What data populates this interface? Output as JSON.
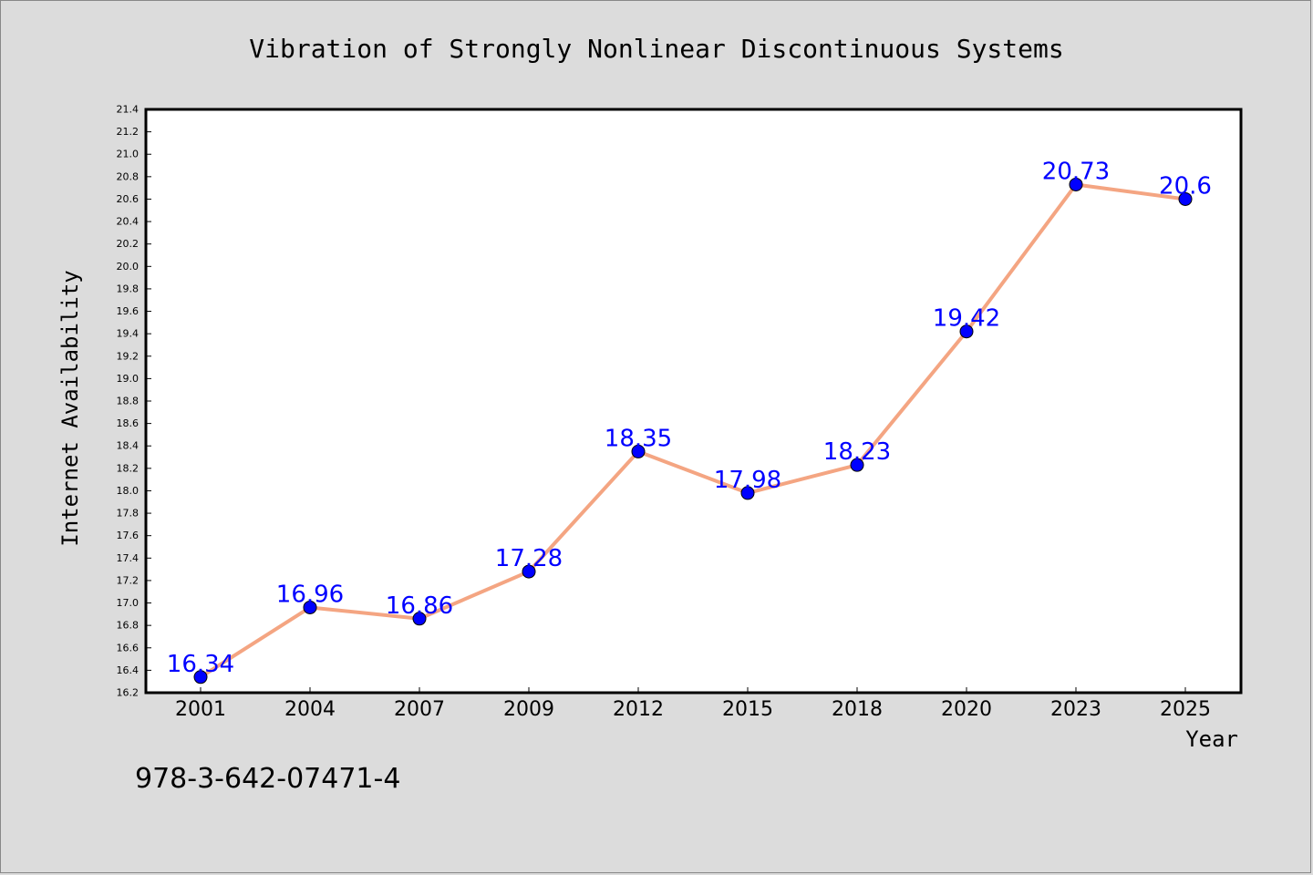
{
  "chart_data": {
    "type": "line",
    "title": "Vibration of Strongly Nonlinear Discontinuous Systems",
    "xlabel": "Year",
    "ylabel": "Internet Availability",
    "categories": [
      "2001",
      "2004",
      "2007",
      "2009",
      "2012",
      "2015",
      "2018",
      "2020",
      "2023",
      "2025"
    ],
    "series": [
      {
        "values": [
          16.34,
          16.96,
          16.86,
          17.28,
          18.35,
          17.98,
          18.23,
          19.42,
          20.73,
          20.6
        ],
        "line_color": "#f4a582",
        "marker_color": "#0000ff"
      }
    ],
    "data_labels": [
      "16.34",
      "16.96",
      "16.86",
      "17.28",
      "18.35",
      "17.98",
      "18.23",
      "19.42",
      "20.73",
      "20.6"
    ],
    "ylim": [
      16.2,
      21.4
    ],
    "yticks": [
      "16.2",
      "16.4",
      "16.6",
      "16.8",
      "17.0",
      "17.2",
      "17.4",
      "17.6",
      "17.8",
      "18.0",
      "18.2",
      "18.4",
      "18.6",
      "18.8",
      "19.0",
      "19.2",
      "19.4",
      "19.6",
      "19.8",
      "20.0",
      "20.2",
      "20.4",
      "20.6",
      "20.8",
      "21.0",
      "21.2",
      "21.4"
    ],
    "grid": false,
    "legend": "none",
    "label_color": "#0000ff"
  },
  "footer": {
    "isbn": "978-3-642-07471-4"
  }
}
